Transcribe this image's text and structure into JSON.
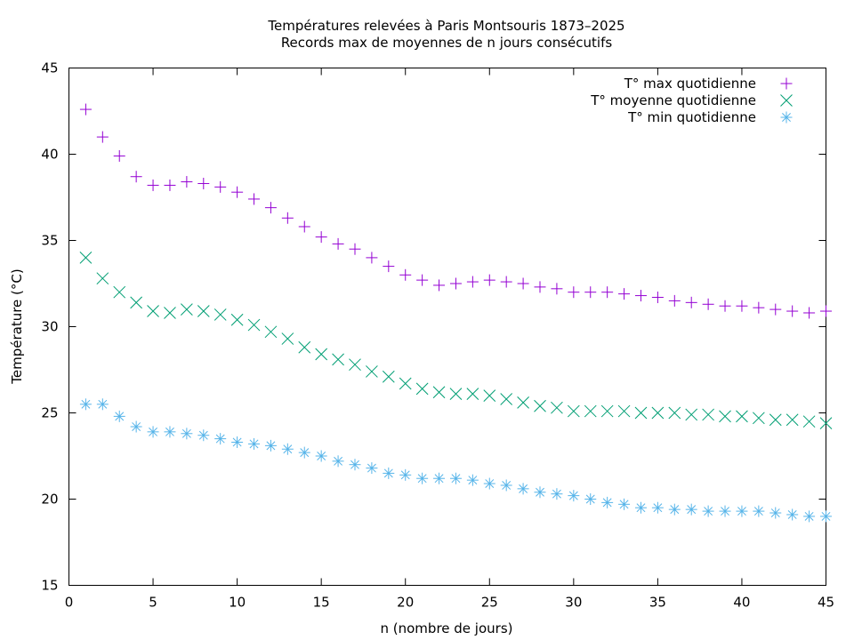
{
  "chart_data": {
    "type": "scatter",
    "title": "Températures relevées à Paris Montsouris 1873–2025",
    "subtitle": "Records max de moyennes de n jours consécutifs",
    "xlabel": "n (nombre de jours)",
    "ylabel": "Température (°C)",
    "xlim": [
      0,
      45
    ],
    "ylim": [
      15,
      45
    ],
    "xticks": [
      0,
      5,
      10,
      15,
      20,
      25,
      30,
      35,
      40,
      45
    ],
    "yticks": [
      15,
      20,
      25,
      30,
      35,
      40,
      45
    ],
    "grid": false,
    "legend_position": "top-right",
    "x": [
      1,
      2,
      3,
      4,
      5,
      6,
      7,
      8,
      9,
      10,
      11,
      12,
      13,
      14,
      15,
      16,
      17,
      18,
      19,
      20,
      21,
      22,
      23,
      24,
      25,
      26,
      27,
      28,
      29,
      30,
      31,
      32,
      33,
      34,
      35,
      36,
      37,
      38,
      39,
      40,
      41,
      42,
      43,
      44,
      45
    ],
    "series": [
      {
        "name": "T° max quotidienne",
        "marker": "plus",
        "color": "#9400d3",
        "values": [
          42.6,
          41.0,
          39.9,
          38.7,
          38.2,
          38.2,
          38.4,
          38.3,
          38.1,
          37.8,
          37.4,
          36.9,
          36.3,
          35.8,
          35.2,
          34.8,
          34.5,
          34.0,
          33.5,
          33.0,
          32.7,
          32.4,
          32.5,
          32.6,
          32.7,
          32.6,
          32.5,
          32.3,
          32.2,
          32.0,
          32.0,
          32.0,
          31.9,
          31.8,
          31.7,
          31.5,
          31.4,
          31.3,
          31.2,
          31.2,
          31.1,
          31.0,
          30.9,
          30.8,
          30.9
        ]
      },
      {
        "name": "T° moyenne quotidienne",
        "marker": "cross",
        "color": "#009e73",
        "values": [
          34.0,
          32.8,
          32.0,
          31.4,
          30.9,
          30.8,
          31.0,
          30.9,
          30.7,
          30.4,
          30.1,
          29.7,
          29.3,
          28.8,
          28.4,
          28.1,
          27.8,
          27.4,
          27.1,
          26.7,
          26.4,
          26.2,
          26.1,
          26.1,
          26.0,
          25.8,
          25.6,
          25.4,
          25.3,
          25.1,
          25.1,
          25.1,
          25.1,
          25.0,
          25.0,
          25.0,
          24.9,
          24.9,
          24.8,
          24.8,
          24.7,
          24.6,
          24.6,
          24.5,
          24.4
        ]
      },
      {
        "name": "T° min quotidienne",
        "marker": "star",
        "color": "#56b4e9",
        "values": [
          25.5,
          25.5,
          24.8,
          24.2,
          23.9,
          23.9,
          23.8,
          23.7,
          23.5,
          23.3,
          23.2,
          23.1,
          22.9,
          22.7,
          22.5,
          22.2,
          22.0,
          21.8,
          21.5,
          21.4,
          21.2,
          21.2,
          21.2,
          21.1,
          20.9,
          20.8,
          20.6,
          20.4,
          20.3,
          20.2,
          20.0,
          19.8,
          19.7,
          19.5,
          19.5,
          19.4,
          19.4,
          19.3,
          19.3,
          19.3,
          19.3,
          19.2,
          19.1,
          19.0,
          19.0
        ]
      }
    ]
  }
}
